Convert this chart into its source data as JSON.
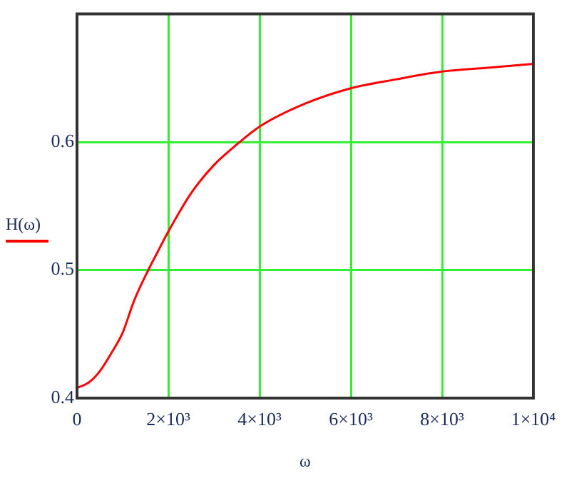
{
  "chart_data": {
    "type": "line",
    "xlabel": "ω",
    "legend": "left",
    "grid": true,
    "x": [
      0,
      250,
      500,
      750,
      1000,
      1250,
      1562,
      1750,
      2000,
      2500,
      3000,
      3500,
      4000,
      5000,
      6000,
      7000,
      8000,
      9000,
      10000
    ],
    "series": [
      {
        "name": "H(ω)",
        "color": "#ff0000",
        "values": [
          0.408,
          0.412,
          0.421,
          0.435,
          0.451,
          0.476,
          0.5,
          0.513,
          0.53,
          0.56,
          0.582,
          0.598,
          0.612,
          0.63,
          0.642,
          0.649,
          0.655,
          0.658,
          0.661
        ]
      }
    ],
    "xlim": [
      0,
      10000
    ],
    "xticks": [
      0,
      {
        "value": 2000,
        "label": "2×10³"
      },
      {
        "value": 4000,
        "label": "4×10³"
      },
      {
        "value": 6000,
        "label": "6×10³"
      },
      {
        "value": 8000,
        "label": "8×10³"
      },
      {
        "value": 10000,
        "label": "1×10⁴"
      }
    ],
    "ylim": [
      0.4,
      0.7
    ],
    "yticks": [
      0.4,
      0.5,
      0.6
    ]
  }
}
